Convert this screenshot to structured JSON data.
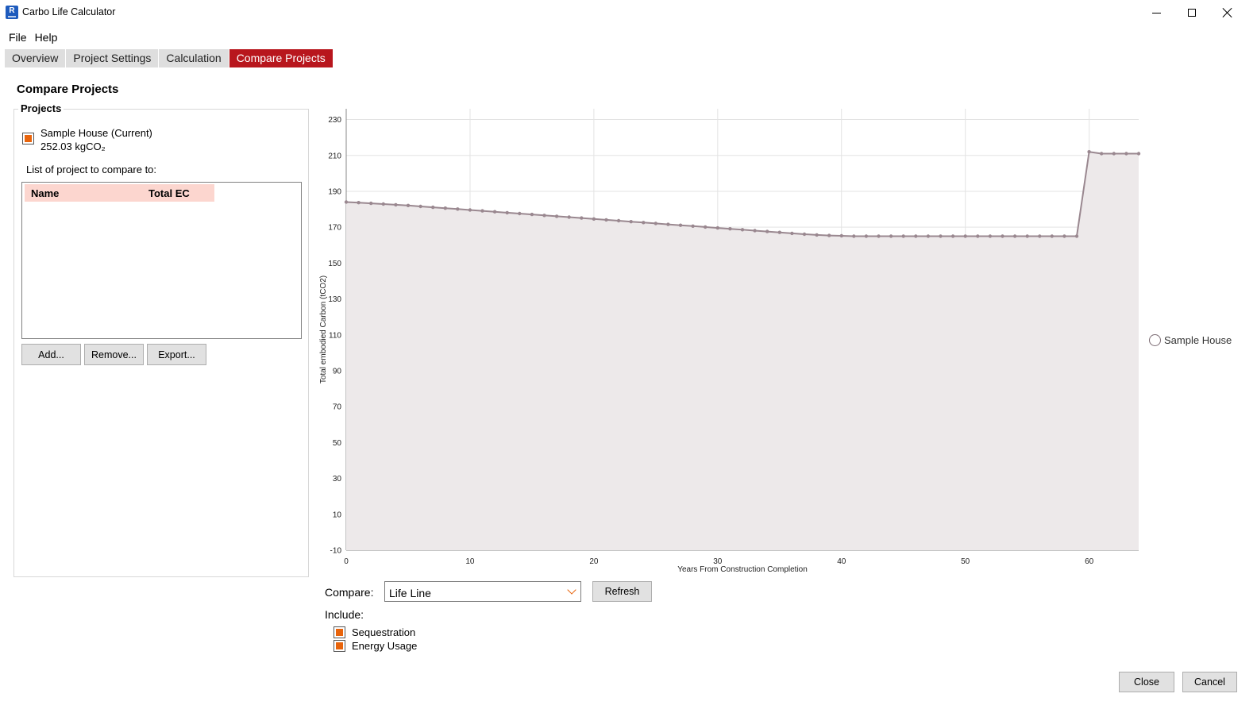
{
  "window": {
    "title": "Carbo Life Calculator",
    "icon_letter": "R"
  },
  "menu": [
    "File",
    "Help"
  ],
  "tabs": [
    {
      "label": "Overview",
      "active": false
    },
    {
      "label": "Project Settings",
      "active": false
    },
    {
      "label": "Calculation",
      "active": false
    },
    {
      "label": "Compare Projects",
      "active": true
    }
  ],
  "page_title": "Compare Projects",
  "projects": {
    "group_label": "Projects",
    "current_name": "Sample House (Current)",
    "current_value": "252.03 kgCO₂",
    "compare_label": "List of project to compare to:",
    "columns": [
      "Name",
      "Total EC"
    ],
    "rows": [],
    "buttons": {
      "add": "Add...",
      "remove": "Remove...",
      "export": "Export..."
    }
  },
  "controls": {
    "compare_label": "Compare:",
    "compare_value": "Life Line",
    "refresh_label": "Refresh",
    "include_label": "Include:",
    "sequestration_label": "Sequestration",
    "energy_label": "Energy Usage"
  },
  "footer": {
    "close_label": "Close",
    "cancel_label": "Cancel"
  },
  "colors": {
    "accent": "#b8161d",
    "checkbox_fill": "#e8640c",
    "header_fill": "#fcd6cf",
    "series_line": "#9a8890",
    "series_fill": "#ede9ea"
  },
  "chart_data": {
    "type": "area",
    "xlabel": "Years From Construction Completion",
    "ylabel": "Total embodied Carbon (tCO2)",
    "xlim": [
      0,
      64
    ],
    "ylim": [
      -10,
      236
    ],
    "x_ticks": [
      0,
      10,
      20,
      30,
      40,
      50,
      60
    ],
    "y_ticks": [
      -10,
      10,
      30,
      50,
      70,
      90,
      110,
      130,
      150,
      170,
      190,
      210,
      230
    ],
    "grid": true,
    "legend": "right",
    "series": [
      {
        "name": "Sample House",
        "x": [
          0,
          1,
          2,
          3,
          4,
          5,
          6,
          7,
          8,
          9,
          10,
          11,
          12,
          13,
          14,
          15,
          16,
          17,
          18,
          19,
          20,
          21,
          22,
          23,
          24,
          25,
          26,
          27,
          28,
          29,
          30,
          31,
          32,
          33,
          34,
          35,
          36,
          37,
          38,
          39,
          40,
          41,
          42,
          43,
          44,
          45,
          46,
          47,
          48,
          49,
          50,
          51,
          52,
          53,
          54,
          55,
          56,
          57,
          58,
          59,
          60,
          61,
          62,
          63,
          64
        ],
        "values": [
          184,
          183.7,
          183.3,
          182.9,
          182.5,
          182.1,
          181.6,
          181.1,
          180.6,
          180.1,
          179.6,
          179.1,
          178.6,
          178.1,
          177.6,
          177.1,
          176.6,
          176.1,
          175.6,
          175.1,
          174.6,
          174.1,
          173.6,
          173.1,
          172.6,
          172.1,
          171.6,
          171.1,
          170.6,
          170.1,
          169.6,
          169.1,
          168.6,
          168.1,
          167.6,
          167.1,
          166.6,
          166.1,
          165.7,
          165.4,
          165.2,
          165,
          165,
          165,
          165,
          165,
          165,
          165,
          165,
          165,
          165,
          165,
          165,
          165,
          165,
          165,
          165,
          165,
          165,
          165,
          212,
          211,
          211,
          211,
          211
        ]
      }
    ]
  }
}
